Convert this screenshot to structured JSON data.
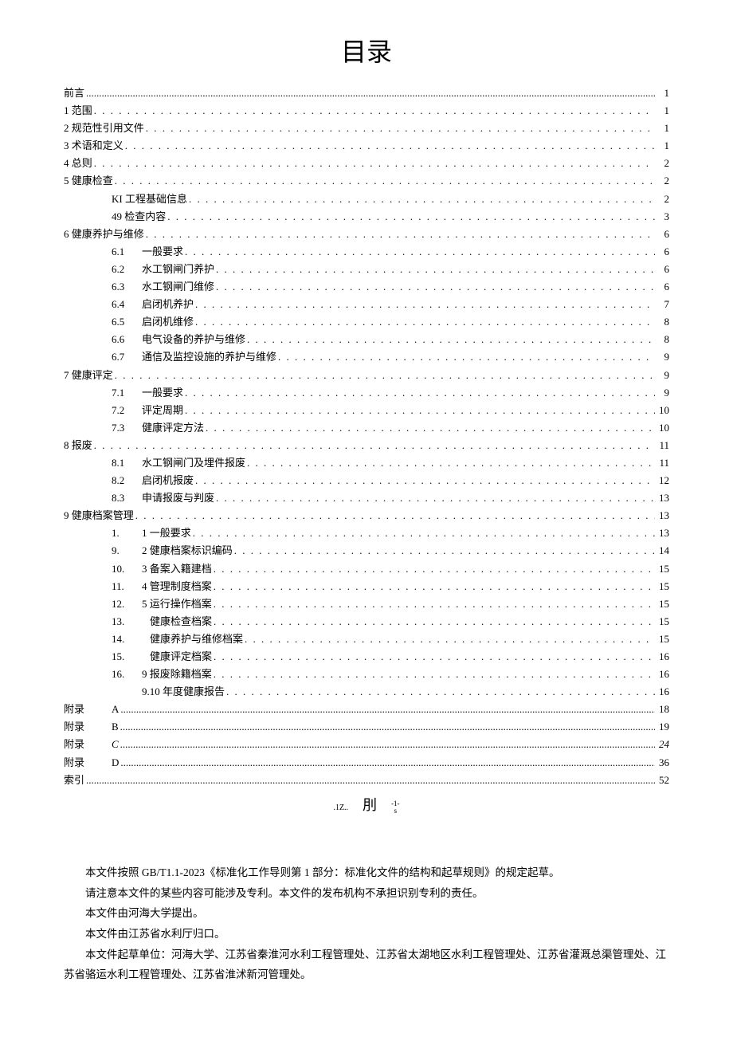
{
  "title": "目录",
  "toc": [
    {
      "indent": 0,
      "label": "前言",
      "page": "1",
      "dots": "tight"
    },
    {
      "indent": 0,
      "label": "1 范围",
      "page": "1"
    },
    {
      "indent": 0,
      "label": "2 规范性引用文件",
      "page": "1"
    },
    {
      "indent": 0,
      "label": "3 术语和定义",
      "page": "1"
    },
    {
      "indent": 0,
      "label": "4 总则",
      "page": "2"
    },
    {
      "indent": 0,
      "label": "5 健康检查",
      "page": "2"
    },
    {
      "indent": 1,
      "label": "KI 工程基础信息",
      "page": "2"
    },
    {
      "indent": 1,
      "label": "49 检查内容",
      "page": "3"
    },
    {
      "indent": 0,
      "label": "6 健康养护与维修",
      "page": "6"
    },
    {
      "indent": 2,
      "num": "6.1",
      "label": "一般要求",
      "page": "6"
    },
    {
      "indent": 2,
      "num": "6.2",
      "label": "水工钢闸门养护",
      "page": "6"
    },
    {
      "indent": 2,
      "num": "6.3",
      "label": "水工钢闸门维修",
      "page": "6"
    },
    {
      "indent": 2,
      "num": "6.4",
      "label": "启闭机养护",
      "page": "7"
    },
    {
      "indent": 2,
      "num": "6.5",
      "label": "启闭机维修",
      "page": "8"
    },
    {
      "indent": 2,
      "num": "6.6",
      "label": "电气设备的养护与维修",
      "page": "8"
    },
    {
      "indent": 2,
      "num": "6.7",
      "label": "通信及监控设施的养护与维修",
      "page": "9"
    },
    {
      "indent": 0,
      "label": "7 健康评定",
      "page": "9"
    },
    {
      "indent": 2,
      "num": "7.1",
      "label": "一般要求",
      "page": "9"
    },
    {
      "indent": 2,
      "num": "7.2",
      "label": "评定周期",
      "page": "10"
    },
    {
      "indent": 2,
      "num": "7.3",
      "label": "健康评定方法",
      "page": "10"
    },
    {
      "indent": 0,
      "label": "8 报废",
      "page": "11"
    },
    {
      "indent": 2,
      "num": "8.1",
      "label": "水工钢闸门及埋件报废",
      "page": "11"
    },
    {
      "indent": 2,
      "num": "8.2",
      "label": "启闭机报废",
      "page": "12"
    },
    {
      "indent": 2,
      "num": "8.3",
      "label": "申请报废与判废",
      "page": "13"
    },
    {
      "indent": 0,
      "label": "9 健康档案管理",
      "page": "13"
    },
    {
      "indent": 2,
      "num": "1.",
      "label": "1 一般要求",
      "page": "13"
    },
    {
      "indent": 2,
      "num": "9.",
      "label": "2 健康档案标识编码",
      "page": "14"
    },
    {
      "indent": 2,
      "num": "10.",
      "label": "3 备案入籍建档",
      "page": "15"
    },
    {
      "indent": 2,
      "num": "11.",
      "label": "4 管理制度档案",
      "page": "15"
    },
    {
      "indent": 2,
      "num": "12.",
      "label": "5 运行操作档案",
      "page": "15"
    },
    {
      "indent": 2,
      "num": "13.",
      "label": "健康检查档案",
      "page": "15",
      "wide": true
    },
    {
      "indent": 2,
      "num": "14.",
      "label": "健康养护与维修档案",
      "page": "15",
      "wide": true
    },
    {
      "indent": 2,
      "num": "15.",
      "label": "健康评定档案",
      "page": "16",
      "wide": true
    },
    {
      "indent": 2,
      "num": "16.",
      "label": "9 报废除籍档案",
      "page": "16"
    },
    {
      "indent": 2,
      "num": "",
      "label": "9.10 年度健康报告",
      "page": "16"
    },
    {
      "indent": 0,
      "label_prefix": "附录",
      "label": "A",
      "page": "18",
      "dots": "tight",
      "appendix": true
    },
    {
      "indent": 0,
      "label_prefix": "附录",
      "label": "B",
      "page": "19",
      "dots": "tight",
      "appendix": true
    },
    {
      "indent": 0,
      "label_prefix": "附录",
      "label": "C",
      "page": "24",
      "dots": "tight",
      "appendix": true,
      "italic": true
    },
    {
      "indent": 0,
      "label_prefix": "附录",
      "label": "D",
      "page": "36",
      "dots": "tight",
      "appendix": true
    },
    {
      "indent": 0,
      "label": "索引",
      "page": "52",
      "dots": "tight"
    }
  ],
  "footer_mark_left": ".1Z..",
  "footer_mark_mid": "刖",
  "footer_mark_right_top": "-1-",
  "footer_mark_right_bot": "s",
  "body_paragraphs": [
    "本文件按照 GB/T1.1-2023《标准化工作导则第 1 部分：标准化文件的结构和起草规则》的规定起草。",
    "请注意本文件的某些内容可能涉及专利。本文件的发布机构不承担识别专利的责任。",
    "本文件由河海大学提出。",
    "本文件由江苏省水利厅归口。",
    "本文件起草单位：河海大学、江苏省秦淮河水利工程管理处、江苏省太湖地区水利工程管理处、江苏省灌溉总渠管理处、江苏省骆运水利工程管理处、江苏省淮沭新河管理处。"
  ]
}
